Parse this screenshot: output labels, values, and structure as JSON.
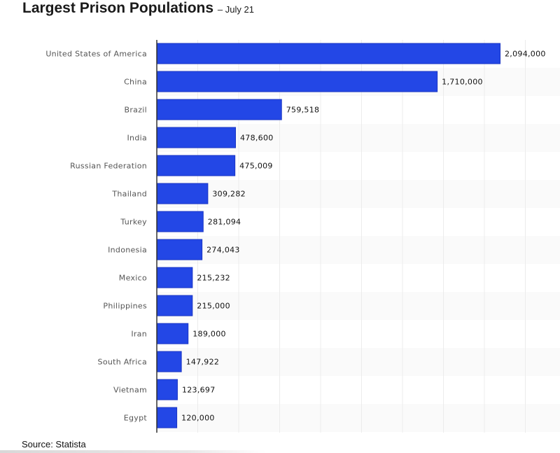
{
  "header": {
    "title": "Largest Prison Populations",
    "subtitle": "– July 21"
  },
  "footer": {
    "source": "Source: Statista"
  },
  "colors": {
    "bar": "#2347e6",
    "bar_edge": "#1a35c4",
    "axis": "#333333",
    "grid": "#ececec",
    "band": "#fafafa"
  },
  "chart_data": {
    "type": "bar",
    "orientation": "horizontal",
    "title": "Largest Prison Populations",
    "subtitle": "– July 21",
    "xlabel": "",
    "ylabel": "",
    "xlim": [
      0,
      2500000
    ],
    "grid": true,
    "grid_step": 250000,
    "categories": [
      "United States of America",
      "China",
      "Brazil",
      "India",
      "Russian Federation",
      "Thailand",
      "Turkey",
      "Indonesia",
      "Mexico",
      "Philippines",
      "Iran",
      "South Africa",
      "Vietnam",
      "Egypt"
    ],
    "values": [
      2094000,
      1710000,
      759518,
      478600,
      475009,
      309282,
      281094,
      274043,
      215232,
      215000,
      189000,
      147922,
      123697,
      120000
    ],
    "value_labels": [
      "2,094,000",
      "1,710,000",
      "759,518",
      "478,600",
      "475,009",
      "309,282",
      "281,094",
      "274,043",
      "215,232",
      "215,000",
      "189,000",
      "147,922",
      "123,697",
      "120,000"
    ],
    "source": "Source: Statista"
  }
}
